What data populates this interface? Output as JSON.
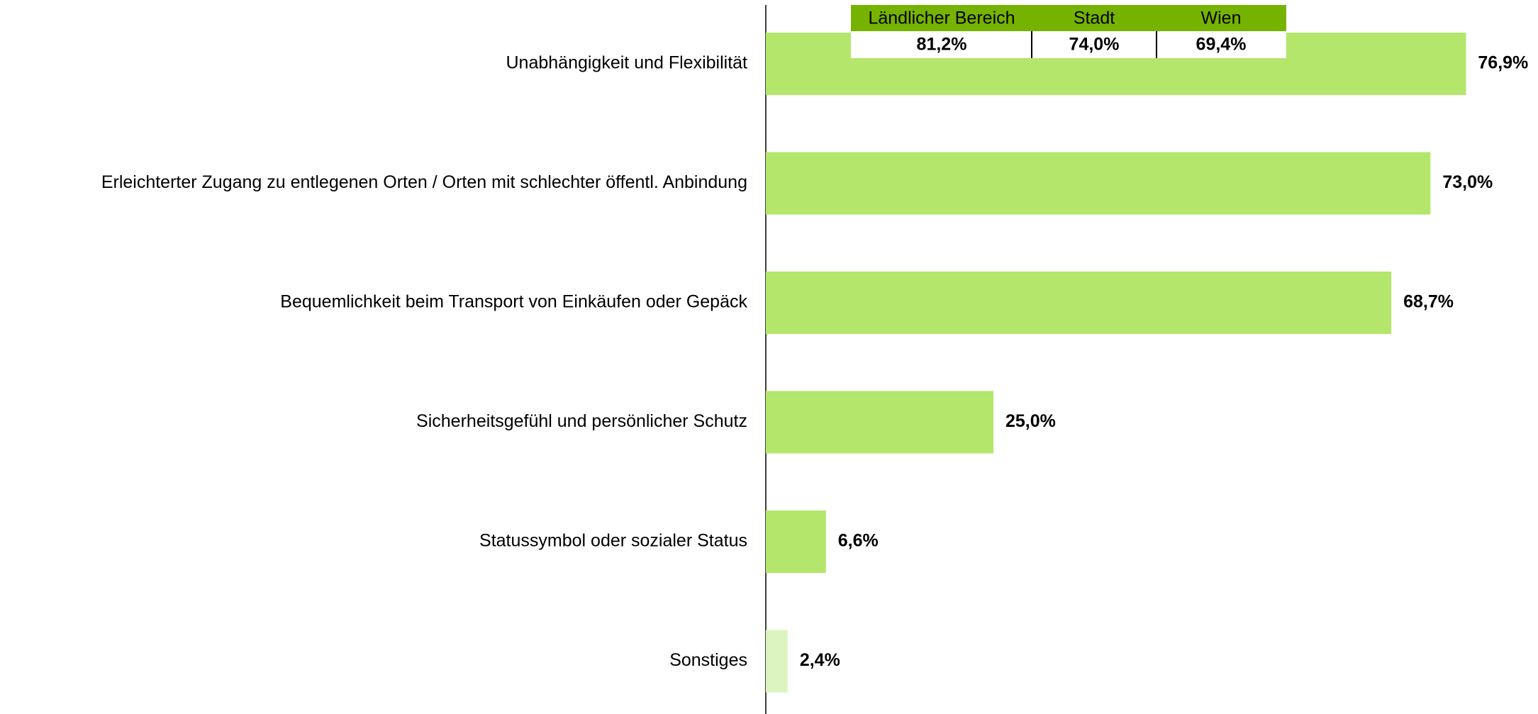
{
  "chart_data": {
    "type": "barh",
    "categories": [
      "Unabhängigkeit und Flexibilität",
      "Erleichterter Zugang zu entlegenen Orten / Orten mit schlechter öffentl. Anbindung",
      "Bequemlichkeit beim Transport von Einkäufen oder Gepäck",
      "Sicherheitsgefühl und persönlicher Schutz",
      "Statussymbol oder sozialer Status",
      "Sonstiges"
    ],
    "values": [
      76.9,
      73.0,
      68.7,
      25.0,
      6.6,
      2.4
    ],
    "value_labels": [
      "76,9%",
      "73,0%",
      "68,7%",
      "25,0%",
      "6,6%",
      "2,4%"
    ],
    "colors": [
      "#b3e66b",
      "#b3e66b",
      "#b3e66b",
      "#b3e66b",
      "#b3e66b",
      "#dcf5c0"
    ],
    "inset": {
      "headers": [
        "Ländlicher Bereich",
        "Stadt",
        "Wien"
      ],
      "cells": [
        "81,2%",
        "74,0%",
        "69,4%"
      ]
    }
  }
}
